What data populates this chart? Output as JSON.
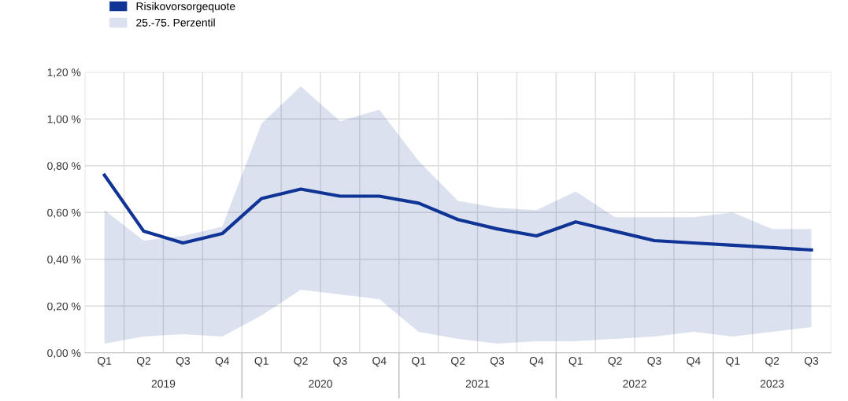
{
  "chart_data": {
    "type": "line",
    "categories": [
      "Q1",
      "Q2",
      "Q3",
      "Q4",
      "Q1",
      "Q2",
      "Q3",
      "Q4",
      "Q1",
      "Q2",
      "Q3",
      "Q4",
      "Q1",
      "Q2",
      "Q3",
      "Q4",
      "Q1",
      "Q2",
      "Q3"
    ],
    "series": [
      {
        "name": "Risikovorsorgequote",
        "color": "#0f3496",
        "values": [
          0.76,
          0.52,
          0.47,
          0.51,
          0.66,
          0.7,
          0.67,
          0.67,
          0.64,
          0.57,
          0.53,
          0.5,
          0.56,
          0.52,
          0.48,
          0.47,
          0.46,
          0.45,
          0.44
        ],
        "lower": [
          0.04,
          0.07,
          0.08,
          0.07,
          0.16,
          0.27,
          0.25,
          0.23,
          0.09,
          0.06,
          0.04,
          0.05,
          0.05,
          0.06,
          0.07,
          0.09,
          0.07,
          0.09,
          0.11
        ],
        "upper": [
          0.61,
          0.48,
          0.5,
          0.54,
          0.98,
          1.14,
          0.99,
          1.04,
          0.82,
          0.65,
          0.62,
          0.61,
          0.69,
          0.58,
          0.58,
          0.58,
          0.6,
          0.53,
          0.53
        ]
      }
    ],
    "annotations": [
      "25.-75. Perzentil",
      "2019",
      "2020",
      "2021",
      "2022",
      "2023"
    ],
    "ylim": [
      0,
      1.2
    ],
    "yticks": [
      {
        "value": 0,
        "label": "0,00 %"
      },
      {
        "value": 0.2,
        "label": "0,20 %"
      },
      {
        "value": 0.4,
        "label": "0,40 %"
      },
      {
        "value": 0.6,
        "label": "0,60 %"
      },
      {
        "value": 0.8,
        "label": "0,80 %"
      },
      {
        "value": 1.0,
        "label": "1,00 %"
      },
      {
        "value": 1.2,
        "label": "1,20 %"
      }
    ],
    "grid": true,
    "legend": "top left",
    "line_style": "solid",
    "marker": "none"
  }
}
